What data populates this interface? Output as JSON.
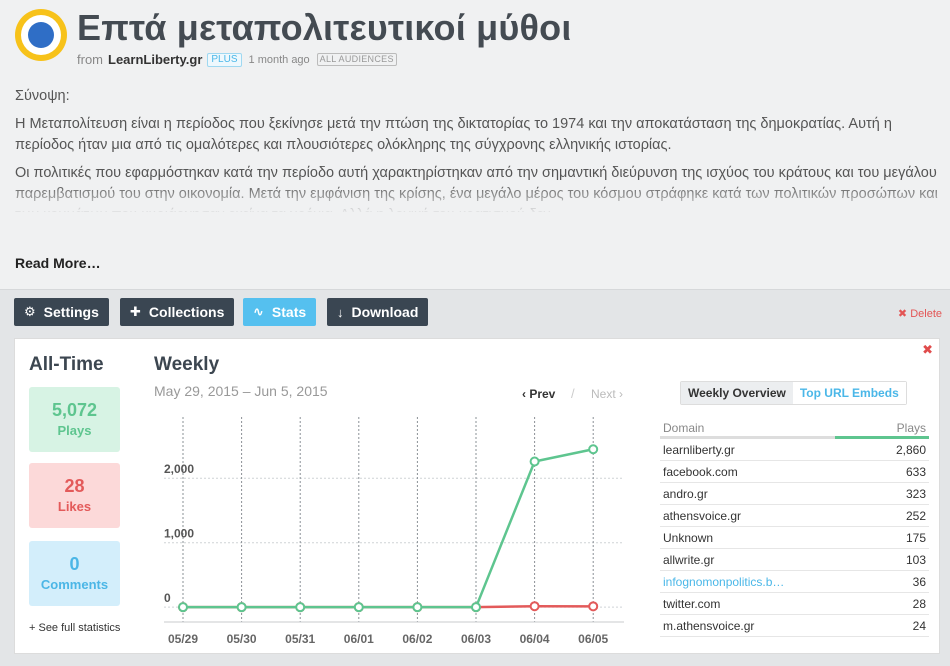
{
  "header": {
    "title": "Επτά μεταπολιτευτικοί μύθοι",
    "from_label": "from",
    "author": "LearnLiberty.gr",
    "plan_badge": "PLUS",
    "time_ago": "1 month ago",
    "audience_badge": "ALL AUDIENCES"
  },
  "description": {
    "heading": "Σύνοψη:",
    "paragraph1": "Η Μεταπολίτευση είναι η περίοδος που ξεκίνησε μετά την πτώση της δικτατορίας το 1974 και την αποκατάσταση της δημοκρατίας. Αυτή η περίοδος ήταν μια από τις ομαλότερες και πλουσιότερες ολόκληρης της σύγχρονης ελληνικής ιστορίας.",
    "paragraph2": "Οι πολιτικές που εφαρμόστηκαν κατά την περίοδο αυτή χαρακτηρίστηκαν από την σημαντική διεύρυνση της ισχύος του κράτους και του μεγάλου παρεμβατισμού του στην οικονομία. Μετά την εμφάνιση της κρίσης, ένα μεγάλο μέρος του κόσμου στράφηκε κατά των πολιτικών προσώπων και των κομμάτων που κυριάρχησαν εκείνα τα χρόνια. Αλλά η λογική του κρατισμού δεν",
    "read_more": "Read More…"
  },
  "toolbar": {
    "settings": "Settings",
    "collections": "Collections",
    "stats": "Stats",
    "download": "Download",
    "delete": "Delete"
  },
  "alltime": {
    "heading": "All-Time",
    "plays_value": "5,072",
    "plays_label": "Plays",
    "likes_value": "28",
    "likes_label": "Likes",
    "comments_value": "0",
    "comments_label": "Comments",
    "see_full": "+ See full statistics"
  },
  "weekly": {
    "heading": "Weekly",
    "date_range": "May 29, 2015 – Jun 5, 2015",
    "prev": "‹ Prev",
    "separator": "/",
    "next": "Next ›"
  },
  "chart_data": {
    "type": "line",
    "x": [
      "05/29",
      "05/30",
      "05/31",
      "06/01",
      "06/02",
      "06/03",
      "06/04",
      "06/05"
    ],
    "series": [
      {
        "values": [
          0,
          0,
          0,
          0,
          0,
          0,
          2260,
          2450
        ],
        "color": "#5ec58f"
      },
      {
        "values": [
          0,
          0,
          0,
          0,
          0,
          0,
          15,
          13
        ],
        "color": "#e35a5a"
      }
    ],
    "y_ticks": [
      0,
      1000,
      2000
    ],
    "y_tick_labels": [
      "0",
      "1,000",
      "2,000"
    ],
    "ylim": [
      -230,
      2950
    ],
    "grid": true
  },
  "domains": {
    "tab_active": "Weekly Overview",
    "tab_inactive": "Top URL Embeds",
    "col_domain": "Domain",
    "col_plays": "Plays",
    "top_share": 0.35,
    "rows": [
      {
        "domain": "learnliberty.gr",
        "plays": "2,860"
      },
      {
        "domain": "facebook.com",
        "plays": "633"
      },
      {
        "domain": "andro.gr",
        "plays": "323"
      },
      {
        "domain": "athensvoice.gr",
        "plays": "252"
      },
      {
        "domain": "Unknown",
        "plays": "175"
      },
      {
        "domain": "allwrite.gr",
        "plays": "103"
      },
      {
        "domain": "infognomonpolitics.b…",
        "plays": "36",
        "link": true
      },
      {
        "domain": "twitter.com",
        "plays": "28"
      },
      {
        "domain": "m.athensvoice.gr",
        "plays": "24"
      }
    ]
  }
}
